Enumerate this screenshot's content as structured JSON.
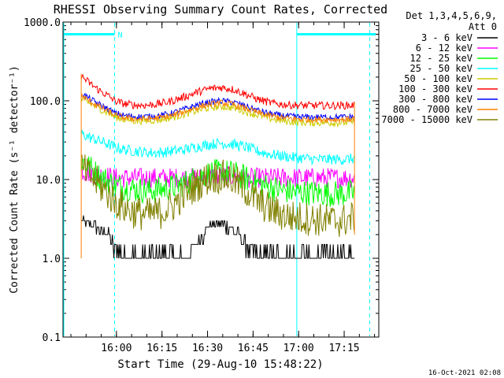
{
  "chart_data": {
    "type": "line",
    "title": "RHESSI Observing Summary Count Rates, Corrected",
    "xlabel": "Start Time (29-Aug-10 15:48:22)",
    "ylabel": "Corrected Count Rate (s⁻¹ detector⁻¹)",
    "yscale": "log",
    "ylim": [
      0.1,
      1000
    ],
    "xlim_minutes_after_1548": [
      -6,
      98
    ],
    "x_ticks": [
      {
        "label": "16:00",
        "value": 11.6
      },
      {
        "label": "16:15",
        "value": 26.6
      },
      {
        "label": "16:30",
        "value": 41.6
      },
      {
        "label": "16:45",
        "value": 56.6
      },
      {
        "label": "17:00",
        "value": 71.6
      },
      {
        "label": "17:15",
        "value": 86.6
      }
    ],
    "y_ticks": [
      {
        "label": "1000.0",
        "value": 1000
      },
      {
        "label": "100.0",
        "value": 100
      },
      {
        "label": "10.0",
        "value": 10
      },
      {
        "label": "1.0",
        "value": 1
      },
      {
        "label": "0.1",
        "value": 0.1
      }
    ],
    "legend_header": [
      "Det 1,3,4,5,6,9,",
      "Att 0"
    ],
    "legend_position": "right",
    "series": [
      {
        "name": "3 - 6 keV",
        "color": "#000000",
        "x": [
          0,
          3,
          6,
          9,
          11,
          14,
          18,
          22,
          26,
          30,
          34,
          38,
          42,
          46,
          50,
          54,
          58,
          62,
          66,
          70,
          74,
          78,
          82,
          86,
          90
        ],
        "values": [
          3.0,
          2.7,
          2.4,
          2.0,
          1.3,
          1.0,
          1.0,
          1.0,
          1.0,
          1.0,
          1.0,
          1.5,
          2.6,
          2.8,
          2.3,
          1.6,
          1.0,
          1.0,
          1.0,
          1.0,
          1.0,
          1.0,
          1.0,
          1.0,
          1.0
        ]
      },
      {
        "name": "6 - 12 keV",
        "color": "#ff00ff",
        "x": [
          0,
          3,
          6,
          9,
          11,
          14,
          18,
          22,
          26,
          30,
          34,
          38,
          42,
          46,
          50,
          54,
          58,
          62,
          66,
          70,
          74,
          78,
          82,
          86,
          90
        ],
        "values": [
          13,
          12,
          11.5,
          11,
          10.5,
          10.5,
          10.5,
          10.5,
          10.5,
          10.5,
          10.5,
          10.5,
          11,
          11,
          11,
          10.5,
          10.5,
          10.5,
          10.5,
          10.5,
          10.5,
          10.5,
          10.5,
          10.5,
          10.5
        ]
      },
      {
        "name": "12 - 25 keV",
        "color": "#00ff00",
        "x": [
          0,
          3,
          6,
          9,
          11,
          14,
          18,
          22,
          26,
          30,
          34,
          38,
          42,
          46,
          50,
          54,
          58,
          62,
          66,
          70,
          74,
          78,
          82,
          86,
          90
        ],
        "values": [
          18,
          14,
          11,
          9.5,
          8.5,
          8,
          7.5,
          7.3,
          7.5,
          8,
          9,
          10.5,
          12,
          12.5,
          12,
          10.5,
          9,
          8,
          7.3,
          7,
          6.8,
          6.7,
          6.6,
          6.6,
          6.8
        ]
      },
      {
        "name": "25 - 50 keV",
        "color": "#00ffff",
        "x": [
          0,
          3,
          6,
          9,
          11,
          14,
          18,
          22,
          26,
          30,
          34,
          38,
          42,
          46,
          50,
          54,
          58,
          62,
          66,
          70,
          74,
          78,
          82,
          86,
          90
        ],
        "values": [
          38,
          34,
          31,
          28,
          26,
          24,
          23,
          22,
          22,
          23,
          24,
          26,
          28,
          29,
          28,
          26,
          23,
          21,
          20,
          19,
          18.5,
          18,
          18,
          18,
          18.5
        ]
      },
      {
        "name": "50 - 100 keV",
        "color": "#cccc00",
        "x": [
          0,
          3,
          6,
          9,
          11,
          14,
          18,
          22,
          26,
          30,
          34,
          38,
          42,
          46,
          50,
          54,
          58,
          62,
          66,
          70,
          74,
          78,
          82,
          86,
          90
        ],
        "values": [
          105,
          92,
          80,
          70,
          63,
          58,
          56,
          56,
          58,
          62,
          68,
          75,
          82,
          85,
          82,
          74,
          66,
          60,
          56,
          54,
          53,
          53,
          53,
          53,
          54
        ]
      },
      {
        "name": "100 - 300 keV",
        "color": "#ff0000",
        "x": [
          0,
          3,
          6,
          9,
          11,
          14,
          18,
          22,
          26,
          30,
          34,
          38,
          42,
          46,
          50,
          54,
          58,
          62,
          66,
          70,
          74,
          78,
          82,
          86,
          90
        ],
        "values": [
          205,
          165,
          135,
          115,
          100,
          92,
          88,
          88,
          92,
          100,
          112,
          128,
          142,
          148,
          140,
          122,
          105,
          95,
          90,
          88,
          87,
          87,
          87,
          87,
          88
        ]
      },
      {
        "name": "300 - 800 keV",
        "color": "#0000ff",
        "x": [
          0,
          3,
          6,
          9,
          11,
          14,
          18,
          22,
          26,
          30,
          34,
          38,
          42,
          46,
          50,
          54,
          58,
          62,
          66,
          70,
          74,
          78,
          82,
          86,
          90
        ],
        "values": [
          125,
          105,
          90,
          78,
          70,
          65,
          63,
          63,
          65,
          70,
          78,
          88,
          96,
          100,
          96,
          86,
          76,
          69,
          65,
          63,
          62,
          62,
          62,
          62,
          63
        ]
      },
      {
        "name": "800 - 7000 keV",
        "color": "#ff8000",
        "x": [
          0,
          3,
          6,
          9,
          11,
          14,
          18,
          22,
          26,
          30,
          34,
          38,
          42,
          46,
          50,
          54,
          58,
          62,
          66,
          70,
          74,
          78,
          82,
          86,
          90
        ],
        "values": [
          115,
          98,
          84,
          73,
          66,
          61,
          59,
          59,
          61,
          65,
          73,
          82,
          90,
          94,
          90,
          80,
          71,
          65,
          61,
          59,
          58,
          58,
          58,
          58,
          59
        ]
      },
      {
        "name": "7000 - 15000 keV",
        "color": "#808000",
        "x": [
          0,
          3,
          6,
          9,
          11,
          14,
          18,
          22,
          26,
          30,
          34,
          38,
          42,
          46,
          50,
          54,
          58,
          62,
          66,
          70,
          74,
          78,
          82,
          86,
          90
        ],
        "values": [
          14,
          11,
          8.5,
          6.5,
          5.3,
          4.4,
          3.8,
          3.6,
          3.8,
          4.6,
          6.5,
          8.5,
          10.5,
          11,
          10,
          7.5,
          5.3,
          4.2,
          3.6,
          3.3,
          3.2,
          3.1,
          3.0,
          3.0,
          3.3
        ]
      }
    ],
    "annotations": [
      {
        "text": "N",
        "x": 11.0,
        "y": 700,
        "color": "#00ffff"
      }
    ],
    "night_bars": [
      {
        "x0": -6,
        "x1": 11,
        "y": 700
      },
      {
        "x0": 71,
        "x1": 97,
        "y": 700
      }
    ],
    "vlines_solid": [
      -6,
      71
    ],
    "vlines_dashed": [
      11,
      95
    ],
    "solid_line_color": "#00ffff",
    "footer_date": "16-Oct-2021 02:08"
  }
}
